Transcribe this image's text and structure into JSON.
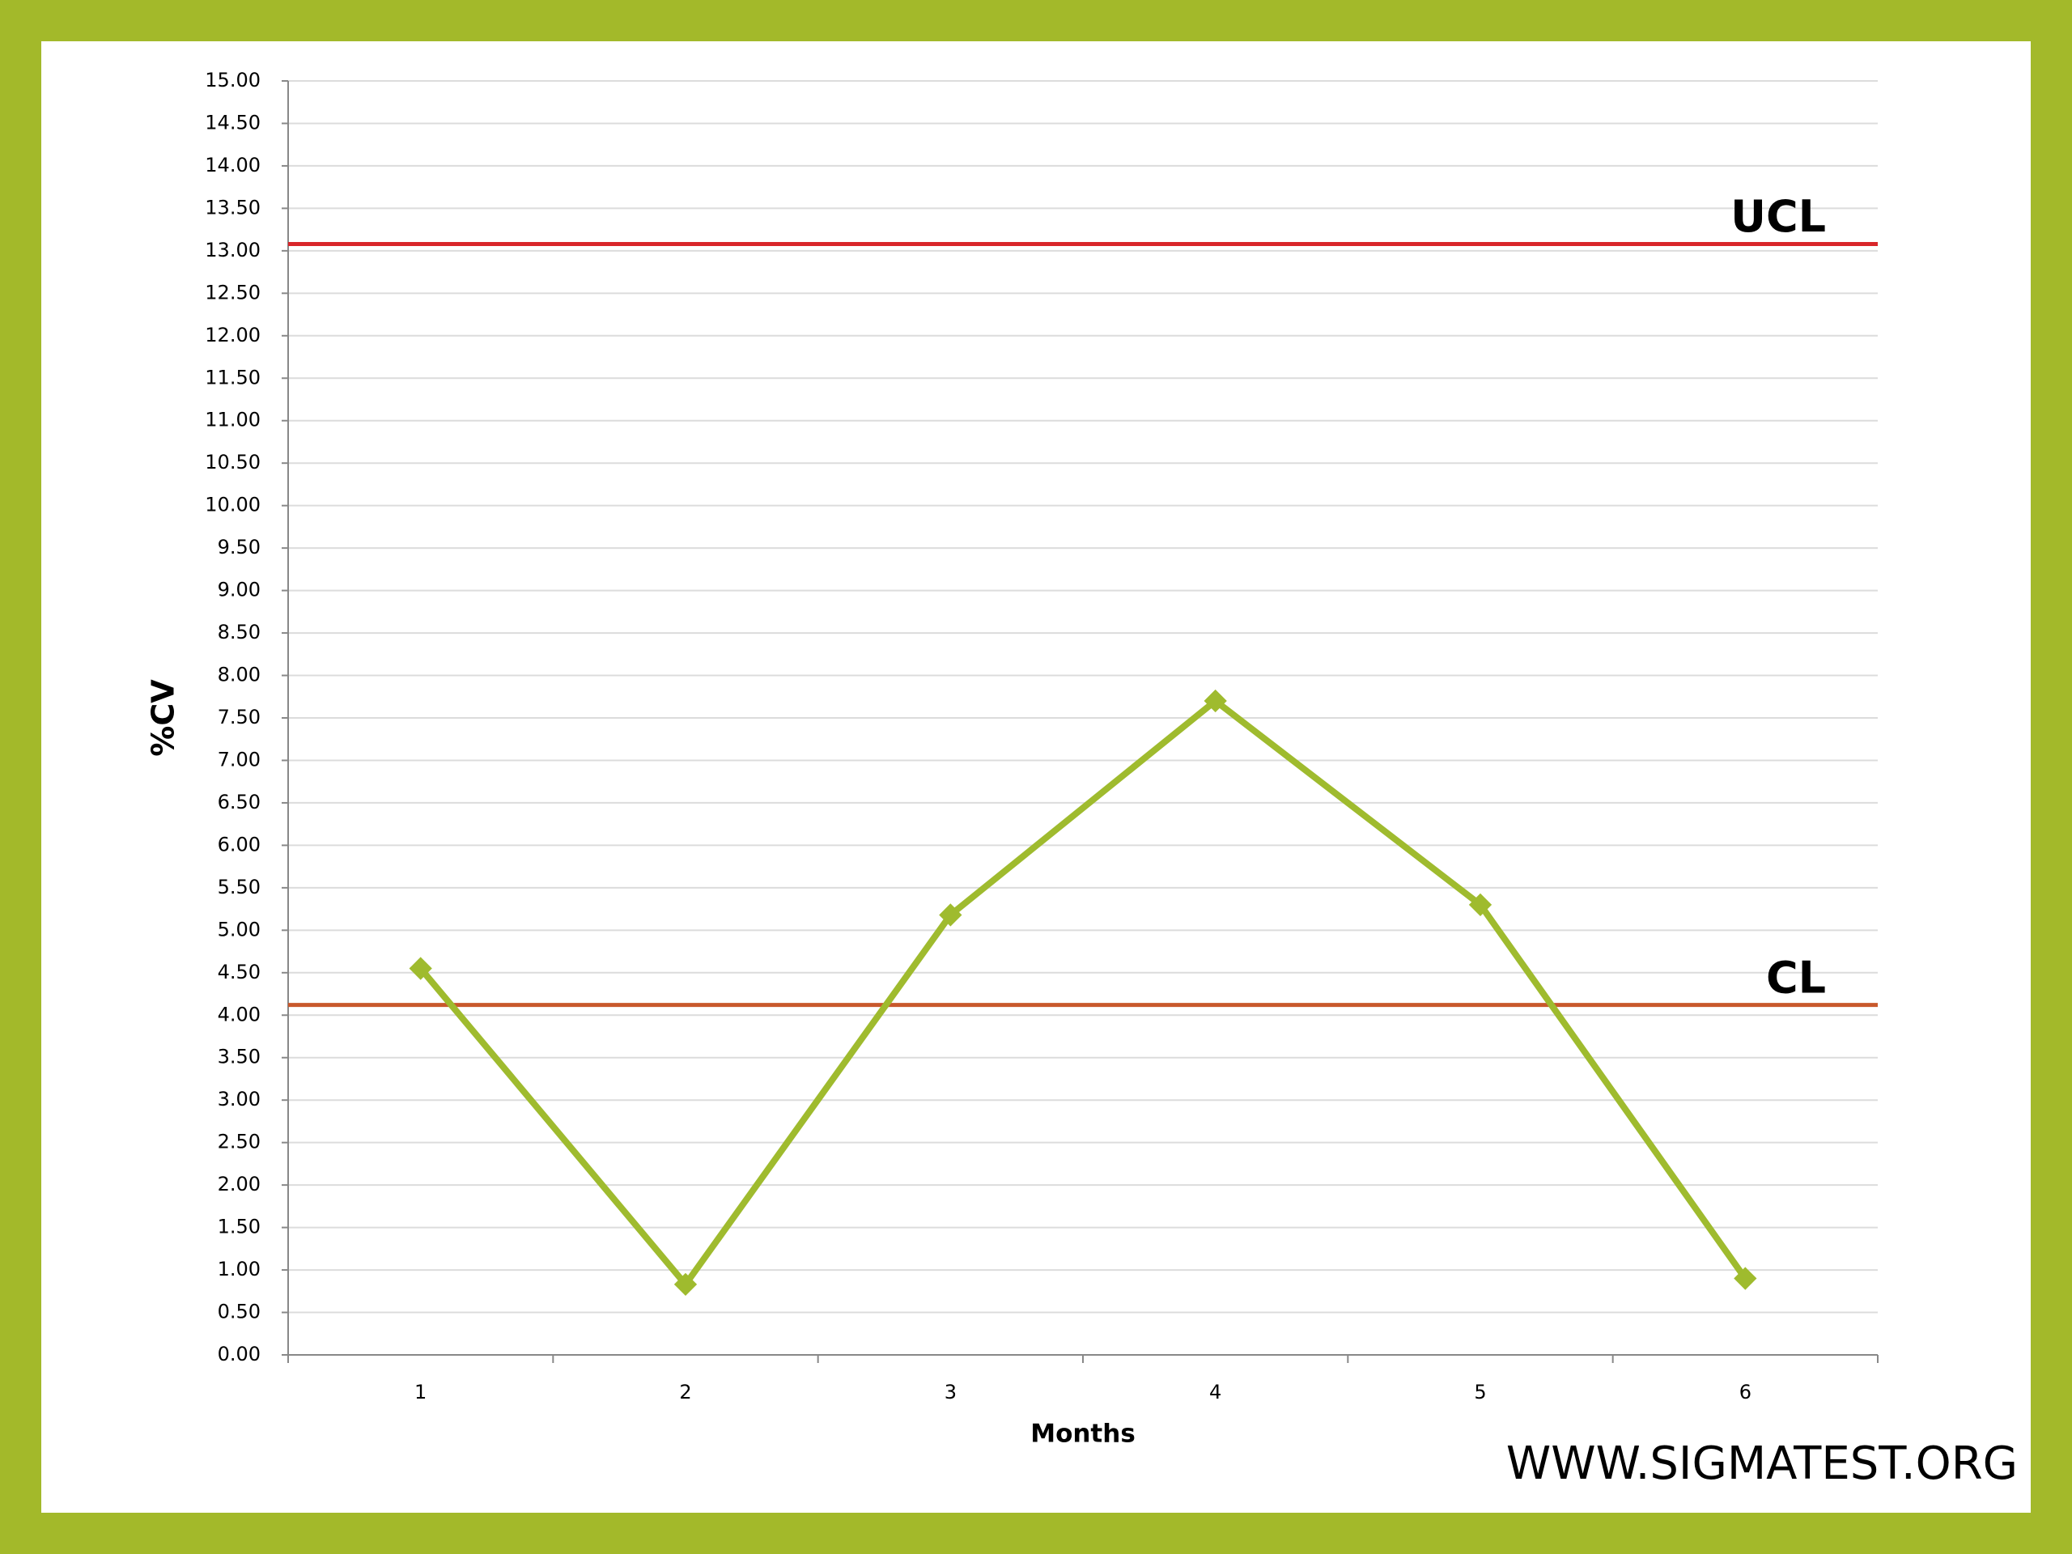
{
  "chart_data": {
    "type": "line",
    "x_label": "Months",
    "y_label": "%CV",
    "watermark": "WWW.SIGMATEST.ORG",
    "categories": [
      "1",
      "2",
      "3",
      "4",
      "5",
      "6"
    ],
    "series": [
      {
        "color": "#9fbb2e",
        "values": [
          4.55,
          0.83,
          5.18,
          7.7,
          5.3,
          0.9
        ]
      }
    ],
    "reference_lines": [
      {
        "label": "UCL",
        "value": 13.08,
        "color": "#d9262a"
      },
      {
        "label": "CL",
        "value": 4.12,
        "color": "#c8582c"
      }
    ],
    "ylim": [
      0,
      15
    ],
    "yticks": [
      {
        "value": 0,
        "label": "0.00"
      },
      {
        "value": 0.5,
        "label": "0.50"
      },
      {
        "value": 1,
        "label": "1.00"
      },
      {
        "value": 1.5,
        "label": "1.50"
      },
      {
        "value": 2,
        "label": "2.00"
      },
      {
        "value": 2.5,
        "label": "2.50"
      },
      {
        "value": 3,
        "label": "3.00"
      },
      {
        "value": 3.5,
        "label": "3.50"
      },
      {
        "value": 4,
        "label": "4.00"
      },
      {
        "value": 4.5,
        "label": "4.50"
      },
      {
        "value": 5,
        "label": "5.00"
      },
      {
        "value": 5.5,
        "label": "5.50"
      },
      {
        "value": 6,
        "label": "6.00"
      },
      {
        "value": 6.5,
        "label": "6.50"
      },
      {
        "value": 7,
        "label": "7.00"
      },
      {
        "value": 7.5,
        "label": "7.50"
      },
      {
        "value": 8,
        "label": "8.00"
      },
      {
        "value": 8.5,
        "label": "8.50"
      },
      {
        "value": 9,
        "label": "9.00"
      },
      {
        "value": 9.5,
        "label": "9.50"
      },
      {
        "value": 10,
        "label": "10.00"
      },
      {
        "value": 10.5,
        "label": "10.50"
      },
      {
        "value": 11,
        "label": "11.00"
      },
      {
        "value": 11.5,
        "label": "11.50"
      },
      {
        "value": 12,
        "label": "12.00"
      },
      {
        "value": 12.5,
        "label": "12.50"
      },
      {
        "value": 13,
        "label": "13.00"
      },
      {
        "value": 13.5,
        "label": "13.50"
      },
      {
        "value": 14,
        "label": "14.00"
      },
      {
        "value": 14.5,
        "label": "14.50"
      },
      {
        "value": 15,
        "label": "15.00"
      }
    ],
    "grid": true
  }
}
